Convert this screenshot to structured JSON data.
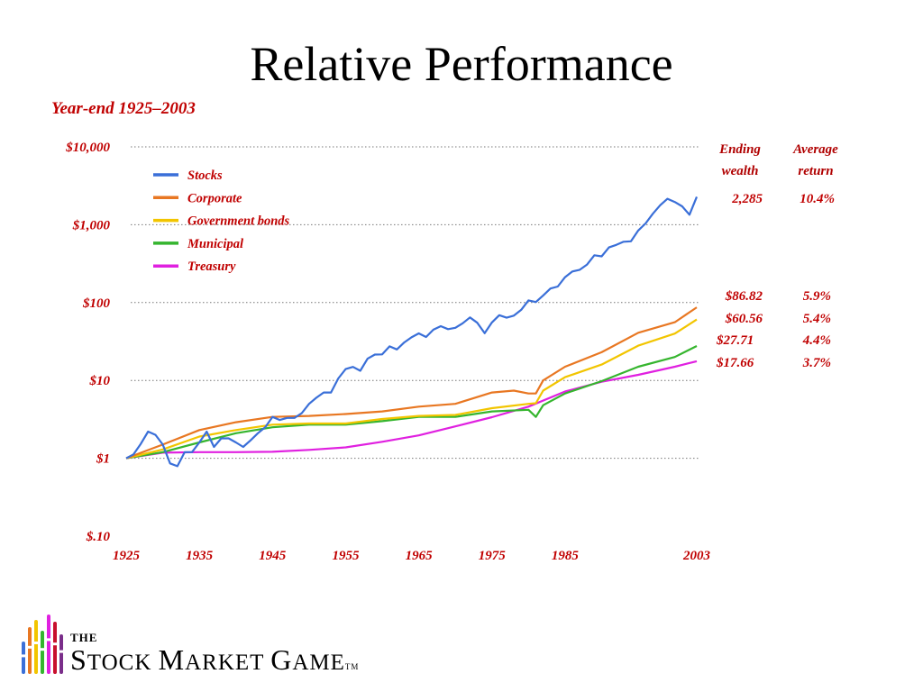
{
  "page": {
    "title": "Relative Performance",
    "subtitle": "Year-end 1925–2003",
    "accent_color": "#c00000"
  },
  "table": {
    "header_ending": [
      "Ending",
      "wealth"
    ],
    "header_average": [
      "Average",
      "return"
    ],
    "rows": [
      {
        "series": "Stocks",
        "ending": "2,285",
        "average": "10.4%"
      },
      {
        "series": "Corporate",
        "ending": "$86.82",
        "average": "5.9%"
      },
      {
        "series": "Government bonds",
        "ending": "$60.56",
        "average": "5.4%"
      },
      {
        "series": "Municipal",
        "ending": "$27.71",
        "average": "4.4%"
      },
      {
        "series": "Treasury",
        "ending": "$17.66",
        "average": "3.7%"
      }
    ]
  },
  "logo": {
    "the": "THE",
    "name_parts": [
      "S",
      "TOCK ",
      "M",
      "ARKET ",
      "G",
      "AME"
    ],
    "tm": "TM",
    "bar_colors": [
      "#3a6fd8",
      "#e87722",
      "#f2c500",
      "#35b52e",
      "#e020e0",
      "#c8102e",
      "#7a2e8a"
    ]
  },
  "chart_data": {
    "type": "line",
    "y_scale": "log",
    "ylim": [
      0.1,
      10000
    ],
    "y_ticks": [
      {
        "value": 10000,
        "label": "$10,000"
      },
      {
        "value": 1000,
        "label": "$1,000"
      },
      {
        "value": 100,
        "label": "$100"
      },
      {
        "value": 10,
        "label": "$10"
      },
      {
        "value": 1,
        "label": "$1"
      },
      {
        "value": 0.1,
        "label": "$.10"
      }
    ],
    "xlim": [
      1925,
      2003
    ],
    "x_ticks": [
      1925,
      1935,
      1945,
      1955,
      1965,
      1975,
      1985,
      2003
    ],
    "grid_y": "dotted",
    "legend_position": "top-left",
    "series": [
      {
        "name": "Stocks",
        "color": "#3a6fd8",
        "x": [
          1925,
          1926,
          1927,
          1928,
          1929,
          1930,
          1931,
          1932,
          1933,
          1934,
          1935,
          1936,
          1937,
          1938,
          1939,
          1940,
          1941,
          1942,
          1943,
          1944,
          1945,
          1946,
          1947,
          1948,
          1949,
          1950,
          1951,
          1952,
          1953,
          1954,
          1955,
          1956,
          1957,
          1958,
          1959,
          1960,
          1961,
          1962,
          1963,
          1964,
          1965,
          1966,
          1967,
          1968,
          1969,
          1970,
          1971,
          1972,
          1973,
          1974,
          1975,
          1976,
          1977,
          1978,
          1979,
          1980,
          1981,
          1982,
          1983,
          1984,
          1985,
          1986,
          1987,
          1988,
          1989,
          1990,
          1991,
          1992,
          1993,
          1994,
          1995,
          1996,
          1997,
          1998,
          1999,
          2000,
          2001,
          2002,
          2003
        ],
        "y": [
          1,
          1.12,
          1.53,
          2.2,
          2.0,
          1.5,
          0.86,
          0.79,
          1.2,
          1.2,
          1.6,
          2.2,
          1.4,
          1.8,
          1.8,
          1.6,
          1.4,
          1.7,
          2.1,
          2.5,
          3.4,
          3.1,
          3.3,
          3.3,
          3.8,
          5.0,
          6.0,
          7.0,
          7.0,
          10.6,
          14.0,
          14.9,
          13.3,
          19.0,
          21.5,
          21.6,
          27.4,
          25.0,
          30.7,
          35.7,
          40.2,
          36.1,
          44.8,
          49.8,
          45.6,
          47.4,
          54.2,
          64.5,
          55.0,
          40.4,
          55.6,
          68.8,
          63.9,
          68.0,
          80.6,
          106.7,
          101.5,
          123.4,
          151.4,
          160.9,
          211.9,
          251.0,
          264.0,
          308.0,
          405.0,
          392.0,
          511.0,
          550.0,
          605.0,
          613.0,
          843.0,
          1037.0,
          1384.0,
          1779.0,
          2153.0,
          1957.0,
          1724.0,
          1343.0,
          2285.0
        ]
      },
      {
        "name": "Corporate",
        "color": "#e87722",
        "x": [
          1925,
          1930,
          1935,
          1940,
          1945,
          1950,
          1955,
          1960,
          1965,
          1970,
          1975,
          1978,
          1980,
          1981,
          1982,
          1985,
          1990,
          1995,
          2000,
          2003
        ],
        "y": [
          1,
          1.5,
          2.3,
          2.9,
          3.4,
          3.5,
          3.7,
          4.0,
          4.6,
          5.0,
          7.0,
          7.4,
          6.8,
          6.8,
          10.0,
          15.0,
          23.0,
          41.0,
          56.0,
          86.82
        ]
      },
      {
        "name": "Government bonds",
        "color": "#f2c500",
        "x": [
          1925,
          1930,
          1935,
          1940,
          1945,
          1950,
          1955,
          1960,
          1965,
          1970,
          1975,
          1980,
          1981,
          1982,
          1985,
          1990,
          1995,
          2000,
          2003
        ],
        "y": [
          1,
          1.3,
          1.9,
          2.3,
          2.7,
          2.8,
          2.8,
          3.2,
          3.5,
          3.6,
          4.4,
          5.0,
          5.1,
          7.4,
          11.0,
          16.0,
          28.0,
          40.0,
          60.56
        ]
      },
      {
        "name": "Municipal",
        "color": "#35b52e",
        "x": [
          1925,
          1930,
          1935,
          1940,
          1945,
          1950,
          1955,
          1960,
          1965,
          1970,
          1975,
          1980,
          1981,
          1982,
          1985,
          1990,
          1995,
          2000,
          2003
        ],
        "y": [
          1,
          1.2,
          1.6,
          2.1,
          2.5,
          2.7,
          2.7,
          3.0,
          3.4,
          3.4,
          4.0,
          4.2,
          3.4,
          4.8,
          6.8,
          9.8,
          15.0,
          20.0,
          27.71
        ]
      },
      {
        "name": "Treasury",
        "color": "#e020e0",
        "x": [
          1925,
          1930,
          1935,
          1940,
          1945,
          1950,
          1955,
          1960,
          1965,
          1970,
          1975,
          1980,
          1985,
          1990,
          1995,
          2000,
          2003
        ],
        "y": [
          1,
          1.18,
          1.2,
          1.2,
          1.21,
          1.28,
          1.38,
          1.63,
          1.97,
          2.57,
          3.37,
          4.6,
          7.2,
          9.6,
          11.8,
          15.0,
          17.66
        ]
      }
    ]
  }
}
